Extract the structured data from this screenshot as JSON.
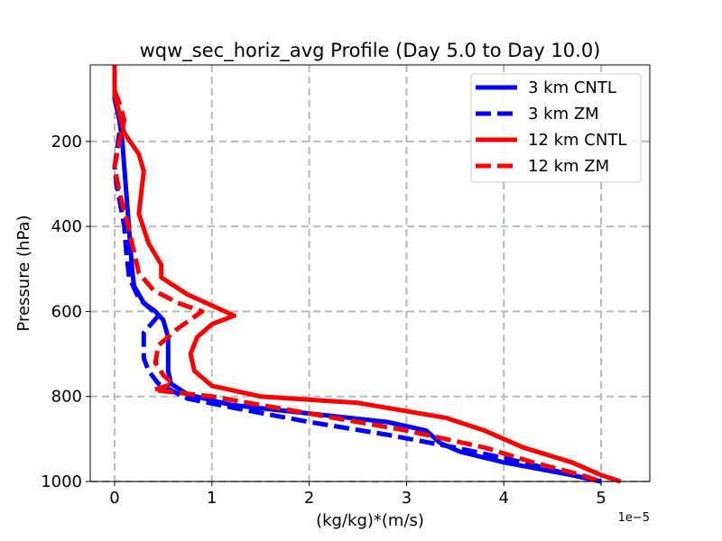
{
  "chart_data": {
    "type": "line",
    "title": "wqw_sec_horiz_avg Profile (Day 5.0 to Day 10.0)",
    "xlabel": "(kg/kg)*(m/s)",
    "ylabel": "Pressure (hPa)",
    "x_offset_label": "1e−5",
    "xlim": [
      -0.25,
      5.5
    ],
    "ylim": [
      1000,
      20
    ],
    "y_inverted": true,
    "grid": true,
    "legend_position": "upper-right",
    "x_ticks": [
      0,
      1,
      2,
      3,
      4,
      5
    ],
    "x_tick_labels": [
      "0",
      "1",
      "2",
      "3",
      "4",
      "5"
    ],
    "y_ticks": [
      200,
      400,
      600,
      800,
      1000
    ],
    "y_tick_labels": [
      "200",
      "400",
      "600",
      "800",
      "1000"
    ],
    "series": [
      {
        "name": "3 km CNTL",
        "color": "#0000ff",
        "style": "solid",
        "x": [
          0.0,
          0.0,
          0.05,
          0.08,
          0.1,
          0.12,
          0.14,
          0.16,
          0.18,
          0.2,
          0.3,
          0.42,
          0.5,
          0.55,
          0.55,
          0.55,
          0.58,
          0.75,
          1.2,
          2.0,
          2.8,
          3.2,
          3.35,
          3.55,
          4.0,
          4.7,
          5.0
        ],
        "y": [
          20,
          100,
          150,
          200,
          260,
          320,
          380,
          440,
          500,
          540,
          580,
          600,
          620,
          660,
          700,
          740,
          770,
          795,
          820,
          840,
          860,
          880,
          910,
          930,
          955,
          985,
          1000
        ]
      },
      {
        "name": "3 km ZM",
        "color": "#0000ff",
        "style": "dashed",
        "x": [
          0.05,
          0.0,
          0.02,
          0.1,
          0.12,
          0.15,
          0.25,
          0.45,
          0.3,
          0.3,
          0.35,
          0.45,
          0.75,
          1.3,
          2.0,
          2.8,
          3.5,
          4.2,
          4.7,
          5.0
        ],
        "y": [
          180,
          260,
          300,
          400,
          460,
          520,
          570,
          610,
          650,
          710,
          740,
          770,
          805,
          830,
          860,
          890,
          920,
          955,
          985,
          1000
        ]
      },
      {
        "name": "12 km CNTL",
        "color": "#ff0000",
        "style": "solid",
        "x": [
          0.0,
          0.0,
          0.1,
          0.25,
          0.3,
          0.28,
          0.25,
          0.35,
          0.48,
          0.48,
          0.75,
          1.23,
          1.0,
          0.85,
          0.78,
          0.82,
          1.0,
          1.5,
          2.5,
          3.4,
          3.8,
          4.2,
          4.7,
          5.0,
          5.2
        ],
        "y": [
          20,
          90,
          180,
          230,
          270,
          310,
          370,
          440,
          490,
          520,
          560,
          610,
          630,
          660,
          700,
          740,
          775,
          800,
          815,
          850,
          880,
          920,
          955,
          985,
          1000
        ]
      },
      {
        "name": "12 km ZM",
        "color": "#ff0000",
        "style": "dashed",
        "x": [
          0.0,
          0.05,
          0.1,
          0.05,
          0.0,
          0.05,
          0.12,
          0.18,
          0.25,
          0.4,
          0.65,
          0.9,
          0.65,
          0.45,
          0.42,
          0.5,
          0.6,
          0.4,
          1.0,
          2.0,
          3.0,
          3.8,
          4.3,
          4.8,
          5.0
        ],
        "y": [
          80,
          110,
          150,
          200,
          260,
          320,
          380,
          440,
          510,
          550,
          580,
          600,
          640,
          680,
          720,
          750,
          770,
          785,
          800,
          840,
          880,
          920,
          955,
          985,
          1000
        ]
      }
    ]
  }
}
